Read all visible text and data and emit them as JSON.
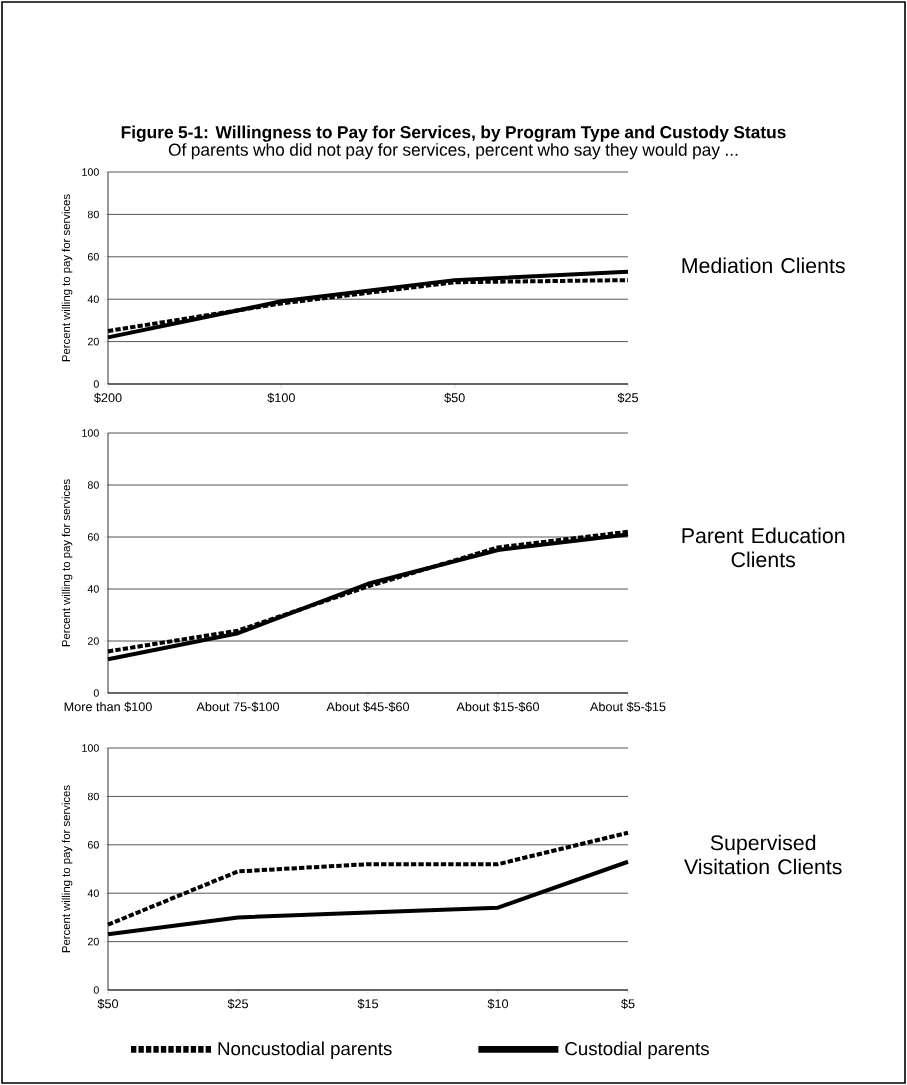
{
  "chart_data": [
    {
      "type": "line",
      "title": "Figure 5-1: Willingness to Pay for Services, by Program Type and Custody Status",
      "subtitle": "Of parents who did not pay for services, percent who say they would pay ...",
      "ylabel": "Percent willing to pay for services",
      "annotations": [
        "Mediation Clients"
      ],
      "categories": [
        "$200",
        "$100",
        "$50",
        "$25"
      ],
      "ylim": [
        0,
        100
      ],
      "yticks": [
        0,
        20,
        40,
        60,
        80,
        100
      ],
      "grid": "y",
      "marker": "none",
      "series": [
        {
          "color": "#000000",
          "line_style": "dashed",
          "values": [
            25,
            38,
            48,
            49
          ]
        },
        {
          "color": "#000000",
          "line_style": "solid",
          "values": [
            22,
            39,
            49,
            53
          ]
        }
      ]
    },
    {
      "type": "line",
      "ylabel": "Percent willing to pay for services",
      "annotations": [
        "Parent Education Clients"
      ],
      "categories": [
        "More than $100",
        "About 75-$100",
        "About $45-$60",
        "About $15-$60",
        "About $5-$15"
      ],
      "ylim": [
        0,
        100
      ],
      "yticks": [
        0,
        20,
        40,
        60,
        80,
        100
      ],
      "grid": "y",
      "marker": "none",
      "series": [
        {
          "color": "#000000",
          "line_style": "dashed",
          "values": [
            16,
            24,
            41,
            56,
            62
          ]
        },
        {
          "color": "#000000",
          "line_style": "solid",
          "values": [
            13,
            23,
            42,
            55,
            61
          ]
        }
      ]
    },
    {
      "type": "line",
      "ylabel": "Percent willing to pay for services",
      "annotations": [
        "Supervised Visitation Clients"
      ],
      "categories": [
        "$50",
        "$25",
        "$15",
        "$10",
        "$5"
      ],
      "ylim": [
        0,
        100
      ],
      "yticks": [
        0,
        20,
        40,
        60,
        80,
        100
      ],
      "grid": "y",
      "marker": "none",
      "legend": "bottom",
      "series": [
        {
          "name": "Noncustodial parents",
          "color": "#000000",
          "line_style": "dashed",
          "values": [
            27,
            49,
            52,
            52,
            65
          ]
        },
        {
          "name": "Custodial parents",
          "color": "#000000",
          "line_style": "solid",
          "values": [
            23,
            30,
            32,
            34,
            53
          ]
        }
      ]
    }
  ]
}
